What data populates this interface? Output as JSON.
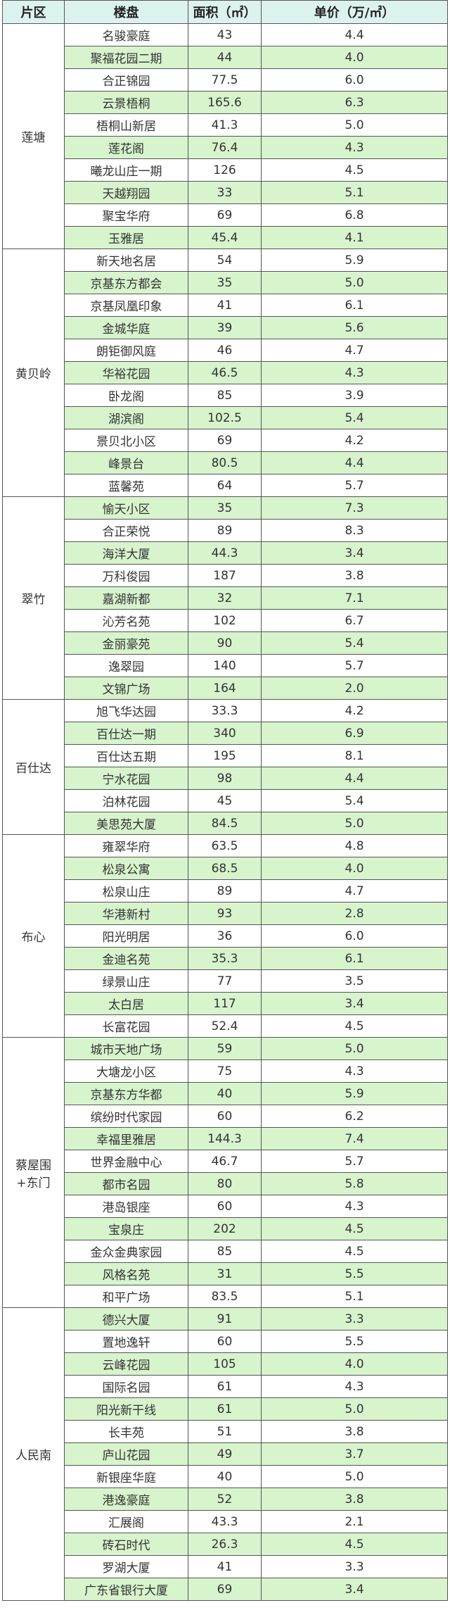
{
  "headers": [
    "片区",
    "楼盘",
    "面积（㎡）",
    "单价（万/㎡）"
  ],
  "colors": {
    "header_bg": "#dcf2ef",
    "alt_row_bg": "#d7f4cd"
  },
  "districts": [
    {
      "name": "莲塘",
      "rows": [
        [
          "名骏豪庭",
          "43",
          "4.4"
        ],
        [
          "聚福花园二期",
          "44",
          "4.0"
        ],
        [
          "合正锦园",
          "77.5",
          "6.0"
        ],
        [
          "云景梧桐",
          "165.6",
          "6.3"
        ],
        [
          "梧桐山新居",
          "41.3",
          "5.0"
        ],
        [
          "莲花阁",
          "76.4",
          "4.3"
        ],
        [
          "曦龙山庄一期",
          "126",
          "4.5"
        ],
        [
          "天越翔园",
          "33",
          "5.1"
        ],
        [
          "聚宝华府",
          "69",
          "6.8"
        ],
        [
          "玉雅居",
          "45.4",
          "4.1"
        ]
      ]
    },
    {
      "name": "黄贝岭",
      "rows": [
        [
          "新天地名居",
          "54",
          "5.9"
        ],
        [
          "京基东方都会",
          "35",
          "5.0"
        ],
        [
          "京基凤凰印象",
          "41",
          "6.1"
        ],
        [
          "金城华庭",
          "39",
          "5.6"
        ],
        [
          "朗钜御风庭",
          "46",
          "4.7"
        ],
        [
          "华裕花园",
          "46.5",
          "4.3"
        ],
        [
          "卧龙阁",
          "85",
          "3.9"
        ],
        [
          "湖滨阁",
          "102.5",
          "5.4"
        ],
        [
          "景贝北小区",
          "69",
          "4.2"
        ],
        [
          "峰景台",
          "80.5",
          "4.4"
        ],
        [
          "蓝馨苑",
          "64",
          "5.7"
        ]
      ]
    },
    {
      "name": "翠竹",
      "rows": [
        [
          "愉天小区",
          "35",
          "7.3"
        ],
        [
          "合正荣悦",
          "89",
          "8.3"
        ],
        [
          "海洋大厦",
          "44.3",
          "3.4"
        ],
        [
          "万科俊园",
          "187",
          "3.8"
        ],
        [
          "嘉湖新都",
          "32",
          "7.1"
        ],
        [
          "沁芳名苑",
          "102",
          "6.7"
        ],
        [
          "金丽豪苑",
          "90",
          "5.4"
        ],
        [
          "逸翠园",
          "140",
          "5.7"
        ],
        [
          "文锦广场",
          "164",
          "2.0"
        ]
      ]
    },
    {
      "name": "百仕达",
      "rows": [
        [
          "旭飞华达园",
          "33.3",
          "4.2"
        ],
        [
          "百仕达一期",
          "340",
          "6.9"
        ],
        [
          "百仕达五期",
          "195",
          "8.1"
        ],
        [
          "宁水花园",
          "98",
          "4.4"
        ],
        [
          "泊林花园",
          "45",
          "5.4"
        ],
        [
          "美思苑大厦",
          "84.5",
          "5.0"
        ]
      ]
    },
    {
      "name": "布心",
      "rows": [
        [
          "雍翠华府",
          "63.5",
          "4.8"
        ],
        [
          "松泉公寓",
          "68.5",
          "4.0"
        ],
        [
          "松泉山庄",
          "89",
          "4.7"
        ],
        [
          "华港新村",
          "93",
          "2.8"
        ],
        [
          "阳光明居",
          "36",
          "6.0"
        ],
        [
          "金迪名苑",
          "35.3",
          "6.1"
        ],
        [
          "绿景山庄",
          "77",
          "3.5"
        ],
        [
          "太白居",
          "117",
          "3.4"
        ],
        [
          "长富花园",
          "52.4",
          "4.5"
        ]
      ]
    },
    {
      "name": "蔡屋围\n+东门",
      "rows": [
        [
          "城市天地广场",
          "59",
          "5.0"
        ],
        [
          "大塘龙小区",
          "75",
          "4.3"
        ],
        [
          "京基东方华都",
          "40",
          "5.9"
        ],
        [
          "缤纷时代家园",
          "60",
          "6.2"
        ],
        [
          "幸福里雅居",
          "144.3",
          "7.4"
        ],
        [
          "世界金融中心",
          "46.7",
          "5.7"
        ],
        [
          "都市名园",
          "80",
          "5.8"
        ],
        [
          "港岛银座",
          "60",
          "4.3"
        ],
        [
          "宝泉庄",
          "202",
          "4.5"
        ],
        [
          "金众金典家园",
          "85",
          "4.5"
        ],
        [
          "风格名苑",
          "31",
          "5.5"
        ],
        [
          "和平广场",
          "83.5",
          "5.1"
        ]
      ]
    },
    {
      "name": "人民南",
      "rows": [
        [
          "德兴大厦",
          "91",
          "3.3"
        ],
        [
          "置地逸轩",
          "60",
          "5.5"
        ],
        [
          "云峰花园",
          "105",
          "4.0"
        ],
        [
          "国际名园",
          "61",
          "4.3"
        ],
        [
          "阳光新干线",
          "61",
          "5.0"
        ],
        [
          "长丰苑",
          "51",
          "3.8"
        ],
        [
          "庐山花园",
          "49",
          "3.7"
        ],
        [
          "新银座华庭",
          "40",
          "5.0"
        ],
        [
          "港逸豪庭",
          "52",
          "3.8"
        ],
        [
          "汇展阁",
          "43.3",
          "2.1"
        ],
        [
          "砖石时代",
          "26.3",
          "4.5"
        ],
        [
          "罗湖大厦",
          "41",
          "3.3"
        ],
        [
          "广东省银行大厦",
          "69",
          "3.4"
        ]
      ]
    }
  ]
}
